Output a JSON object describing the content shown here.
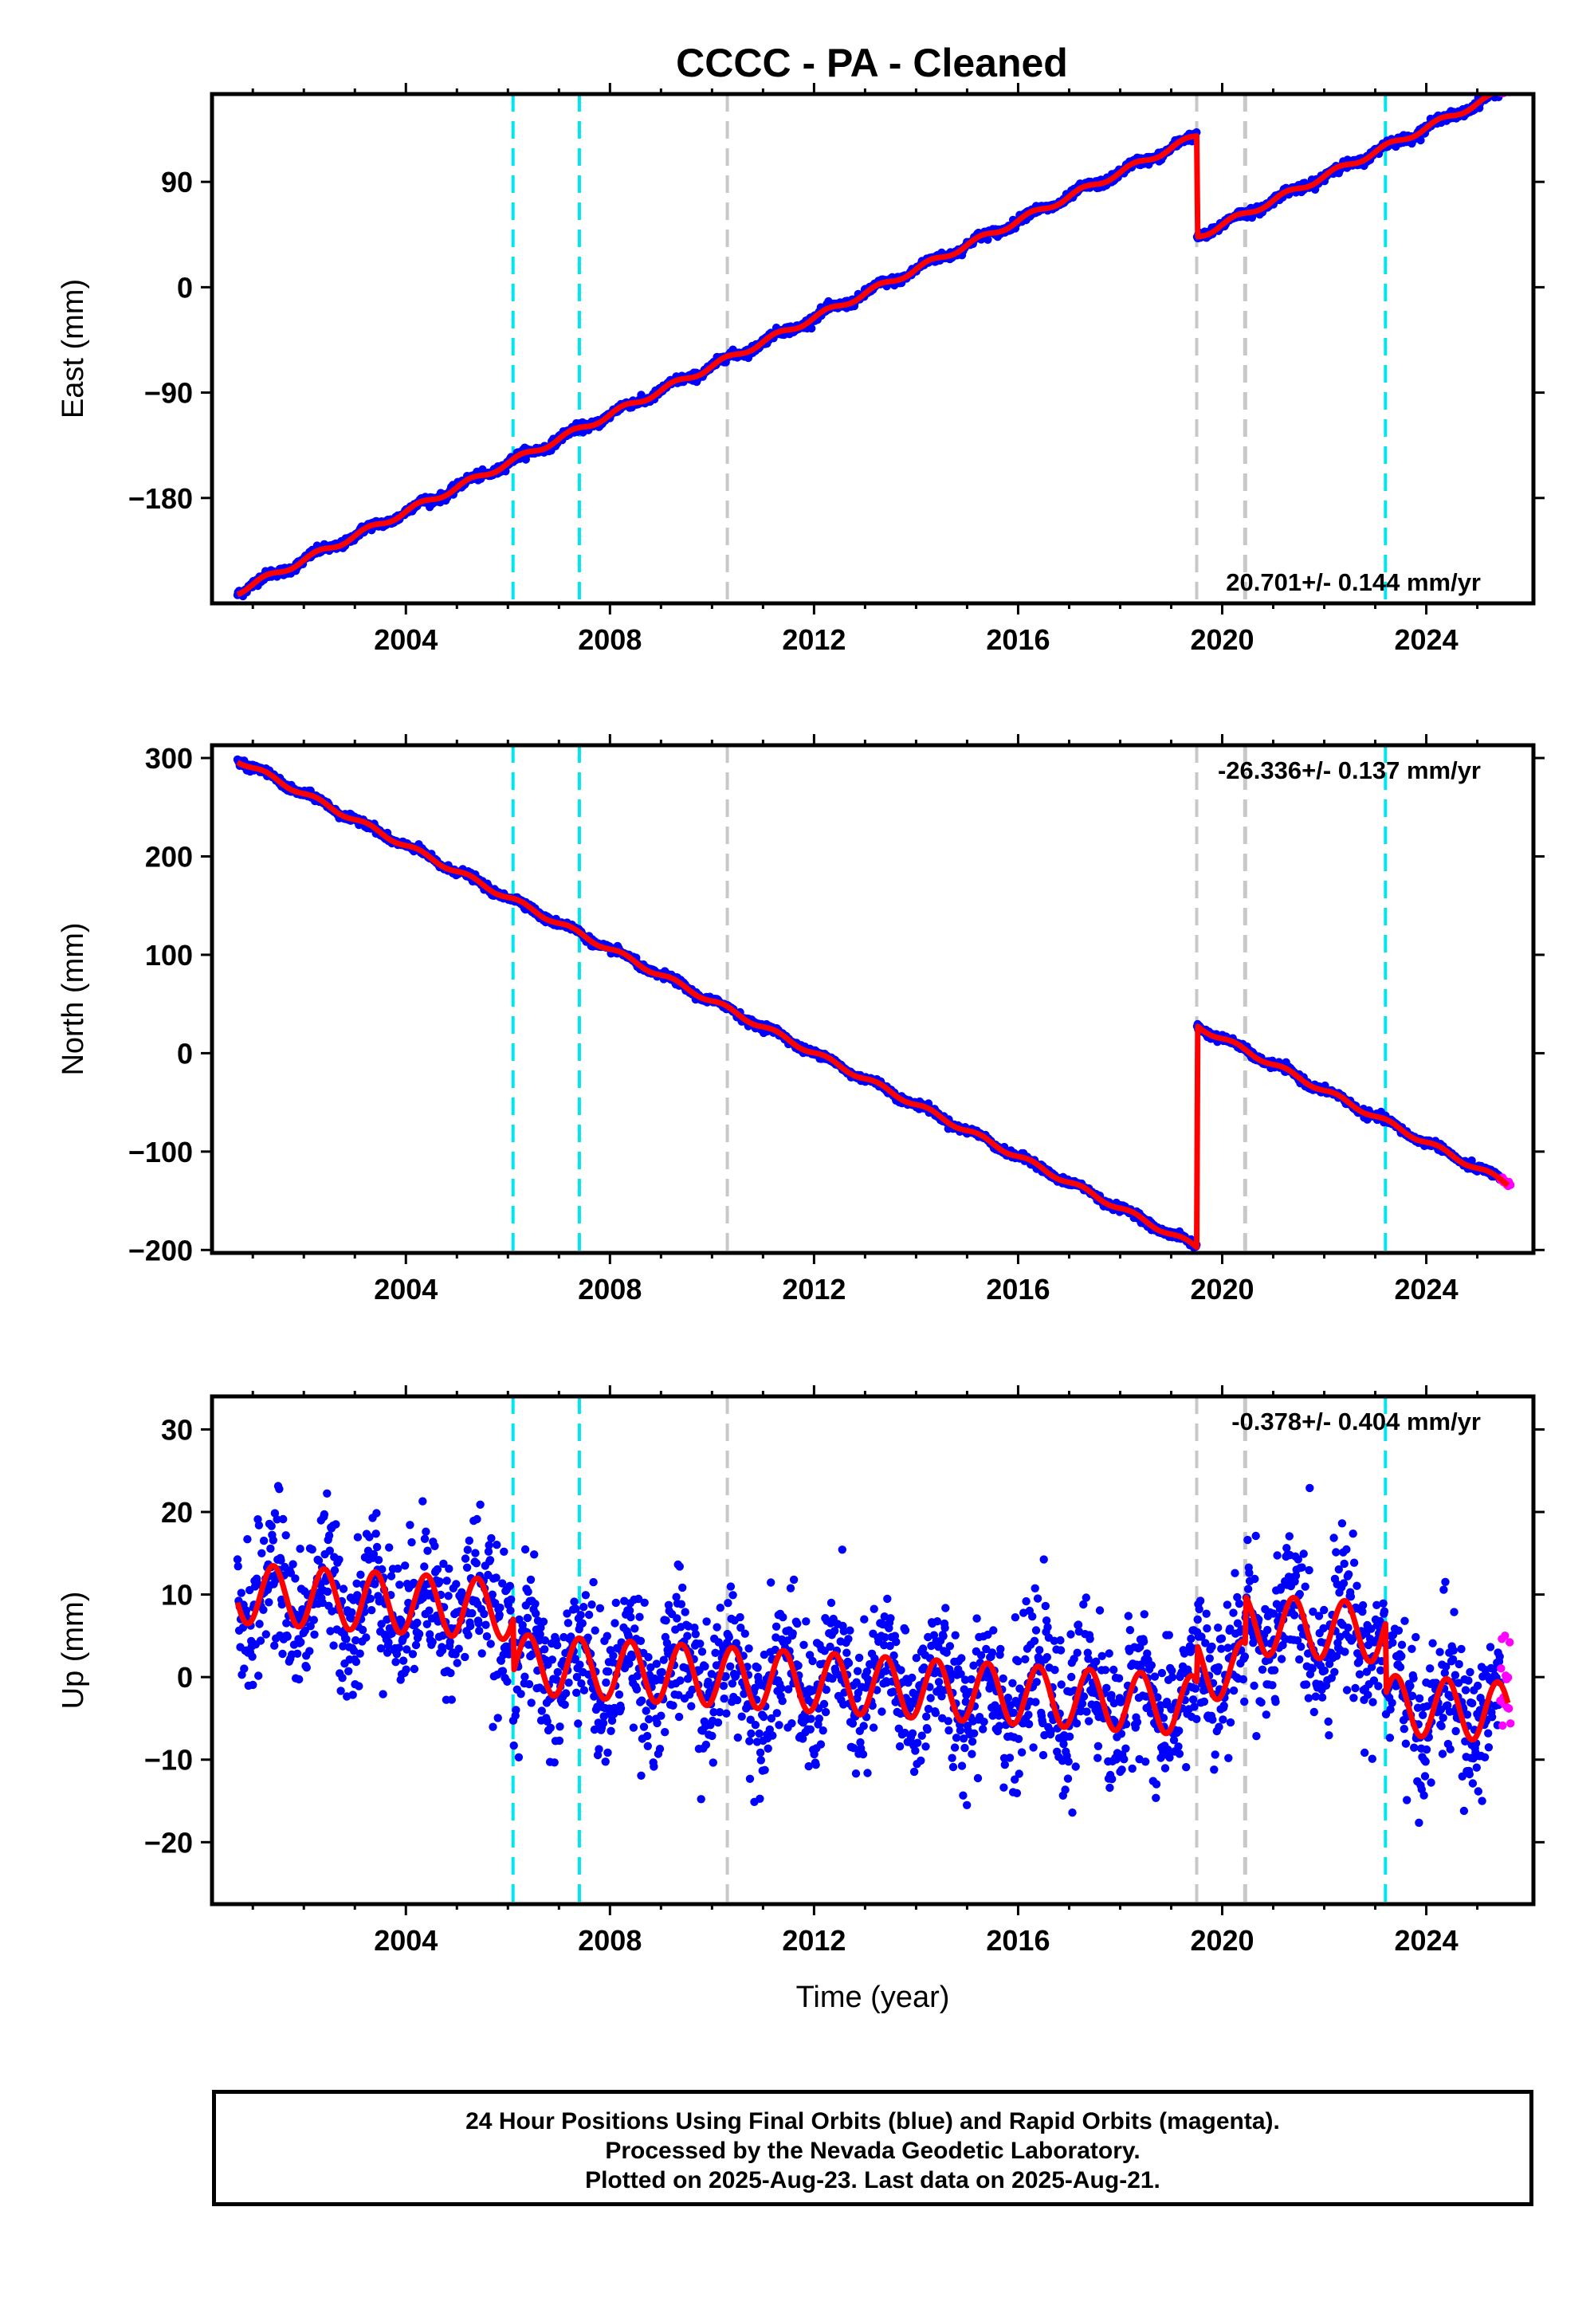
{
  "chart_data": [
    {
      "type": "scatter",
      "title": "CCCC  - PA - Cleaned",
      "ylabel": "East (mm)",
      "xlabel": "",
      "xlim": [
        2000.2,
        2026.1
      ],
      "ylim": [
        -270,
        165
      ],
      "xticks": [
        2004,
        2008,
        2012,
        2016,
        2020,
        2024
      ],
      "xtick_labels": [
        "2004",
        "2008",
        "2012",
        "2016",
        "2020",
        "2024"
      ],
      "yticks": [
        90,
        0,
        -90,
        -180
      ],
      "ytick_labels": [
        "90",
        "0",
        "−90",
        "−180"
      ],
      "rate_text": "20.701+/- 0.144 mm/yr",
      "fit": {
        "rate": 20.701,
        "seasonal_amplitude": 2.5,
        "noise": 1.8,
        "segments": [
          {
            "x": [
              2000.7,
              2019.5
            ],
            "start": -260
          },
          {
            "x": [
              2019.5,
              2025.6
            ],
            "start": 43
          }
        ]
      },
      "series": [
        {
          "name": "Final Orbits (blue)",
          "color": "#0000ff",
          "x_range": [
            2000.7,
            2025.45
          ]
        },
        {
          "name": "Rapid Orbits (magenta)",
          "color": "#ff00ff",
          "x_range": [
            2025.45,
            2025.65
          ]
        },
        {
          "name": "model",
          "color": "#ff0000"
        }
      ],
      "vlines": [
        {
          "x": 2006.1,
          "color": "#00e5ee"
        },
        {
          "x": 2007.4,
          "color": "#00e5ee"
        },
        {
          "x": 2010.3,
          "color": "#c8c8c8"
        },
        {
          "x": 2019.5,
          "color": "#c8c8c8"
        },
        {
          "x": 2020.45,
          "color": "#c8c8c8"
        },
        {
          "x": 2023.2,
          "color": "#00e5ee"
        }
      ]
    },
    {
      "type": "scatter",
      "ylabel": "North (mm)",
      "xlabel": "",
      "xlim": [
        2000.2,
        2026.1
      ],
      "ylim": [
        -203,
        313
      ],
      "xticks": [
        2004,
        2008,
        2012,
        2016,
        2020,
        2024
      ],
      "xtick_labels": [
        "2004",
        "2008",
        "2012",
        "2016",
        "2020",
        "2024"
      ],
      "yticks": [
        300,
        200,
        100,
        0,
        -100,
        -200
      ],
      "ytick_labels": [
        "300",
        "200",
        "100",
        "0",
        "−100",
        "−200"
      ],
      "rate_text": "-26.336+/- 0.137 mm/yr",
      "fit": {
        "rate": -26.336,
        "seasonal_amplitude": 2.5,
        "noise": 1.8,
        "segments": [
          {
            "x": [
              2000.7,
              2019.5
            ],
            "start": 298
          },
          {
            "x": [
              2019.5,
              2025.6
            ],
            "start": 28
          }
        ]
      },
      "series": [
        {
          "name": "Final Orbits (blue)",
          "color": "#0000ff",
          "x_range": [
            2000.7,
            2025.45
          ]
        },
        {
          "name": "Rapid Orbits (magenta)",
          "color": "#ff00ff",
          "x_range": [
            2025.45,
            2025.65
          ]
        },
        {
          "name": "model",
          "color": "#ff0000"
        }
      ],
      "vlines": [
        {
          "x": 2006.1,
          "color": "#00e5ee"
        },
        {
          "x": 2007.4,
          "color": "#00e5ee"
        },
        {
          "x": 2010.3,
          "color": "#c8c8c8"
        },
        {
          "x": 2019.5,
          "color": "#c8c8c8"
        },
        {
          "x": 2020.45,
          "color": "#c8c8c8"
        },
        {
          "x": 2023.2,
          "color": "#00e5ee"
        }
      ]
    },
    {
      "type": "scatter",
      "ylabel": "Up (mm)",
      "xlabel": "Time (year)",
      "xlim": [
        2000.2,
        2026.1
      ],
      "ylim": [
        -27.5,
        34
      ],
      "xticks": [
        2004,
        2008,
        2012,
        2016,
        2020,
        2024
      ],
      "xtick_labels": [
        "2004",
        "2008",
        "2012",
        "2016",
        "2020",
        "2024"
      ],
      "yticks": [
        30,
        20,
        10,
        0,
        -10,
        -20
      ],
      "ytick_labels": [
        "30",
        "20",
        "10",
        "0",
        "−10",
        "−20"
      ],
      "rate_text": "-0.378+/- 0.404 mm/yr",
      "fit": {
        "rate": -0.378,
        "seasonal_amplitude": 3.6,
        "noise": 4.3,
        "segments": [
          {
            "x": [
              2000.7,
              2006.1
            ],
            "offset": 5.5
          },
          {
            "x": [
              2006.1,
              2019.5
            ],
            "offset": -1.0
          },
          {
            "x": [
              2019.5,
              2020.45
            ],
            "offset": 3.5
          },
          {
            "x": [
              2020.45,
              2023.2
            ],
            "offset": 9.2
          },
          {
            "x": [
              2023.2,
              2025.6
            ],
            "offset": 0.5
          }
        ]
      },
      "series": [
        {
          "name": "Final Orbits (blue)",
          "color": "#0000ff",
          "x_range": [
            2000.7,
            2025.45
          ]
        },
        {
          "name": "Rapid Orbits (magenta)",
          "color": "#ff00ff",
          "x_range": [
            2025.45,
            2025.65
          ]
        },
        {
          "name": "model",
          "color": "#ff0000"
        }
      ],
      "vlines": [
        {
          "x": 2006.1,
          "color": "#00e5ee"
        },
        {
          "x": 2007.4,
          "color": "#00e5ee"
        },
        {
          "x": 2010.3,
          "color": "#c8c8c8"
        },
        {
          "x": 2019.5,
          "color": "#c8c8c8"
        },
        {
          "x": 2020.45,
          "color": "#c8c8c8"
        },
        {
          "x": 2023.2,
          "color": "#00e5ee"
        }
      ]
    }
  ],
  "footer": {
    "line1": "24 Hour Positions Using Final Orbits (blue) and Rapid Orbits (magenta).",
    "line2": "Processed by the Nevada Geodetic Laboratory.",
    "line3": "Plotted on 2025-Aug-23. Last data on 2025-Aug-21."
  }
}
